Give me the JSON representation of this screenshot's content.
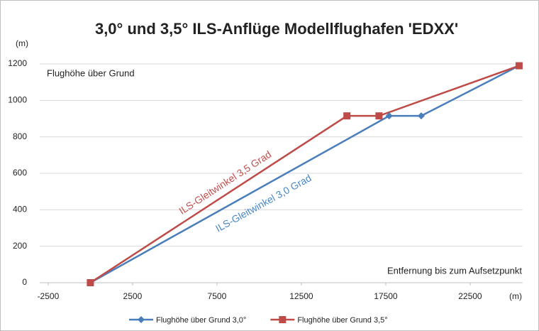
{
  "chart_data": {
    "type": "line",
    "title": "3,0° und 3,5° ILS-Anflüge Modellflughafen 'EDXX'",
    "y_unit": "(m)",
    "x_unit": "(m)",
    "y_label": "Flughöhe über Grund",
    "x_label": "Entfernung bis zum Aufsetzpunkt",
    "annotations": [
      "ILS-Gleitwinkel 3,5 Grad",
      "ILS-Gleitwinkel 3,0 Grad"
    ],
    "annotation_colors": [
      "#c0504d",
      "#4a86c5"
    ],
    "xlim": [
      -3000,
      25600
    ],
    "xticks": [
      -2500,
      2500,
      7500,
      12500,
      17500,
      22500
    ],
    "ylim": [
      0,
      1200
    ],
    "yticks": [
      0,
      200,
      400,
      600,
      800,
      1000,
      1200
    ],
    "grid": true,
    "legend": "bottom",
    "series": [
      {
        "name": "Flughöhe über Grund 3,0°",
        "color": "#4a7ebb",
        "marker": "diamond",
        "x": [
          0,
          17700,
          19600,
          25400
        ],
        "values": [
          0,
          915,
          915,
          1190
        ]
      },
      {
        "name": "Flughöhe über Grund 3,5°",
        "color": "#be4b48",
        "marker": "square",
        "x": [
          0,
          15200,
          17100,
          25400
        ],
        "values": [
          0,
          915,
          915,
          1190
        ]
      }
    ]
  }
}
